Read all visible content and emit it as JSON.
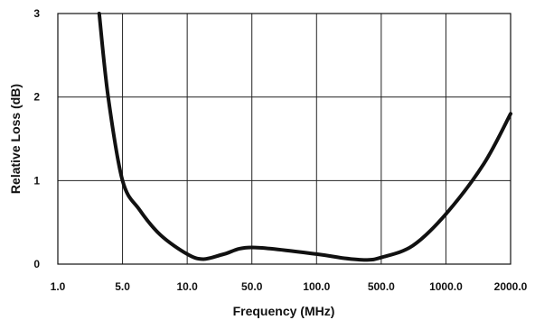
{
  "chart_data": {
    "type": "line",
    "xlabel": "Frequency (MHz)",
    "ylabel": "Relative Loss (dB)",
    "x_categories": [
      "1.0",
      "5.0",
      "10.0",
      "50.0",
      "100.0",
      "500.0",
      "1000.0",
      "2000.0"
    ],
    "y_ticks": [
      "0",
      "1",
      "2",
      "3"
    ],
    "ylim": [
      0,
      3
    ],
    "x_scale": "categorical, evenly spaced ticks",
    "grid": true,
    "legend": "none",
    "series": [
      {
        "color": "#111111",
        "points": [
          {
            "x": 2.8,
            "y": 3.0
          },
          {
            "x": 3.5,
            "y": 2.0
          },
          {
            "x": 5.0,
            "y": 1.0
          },
          {
            "x": 6.0,
            "y": 0.65
          },
          {
            "x": 7.5,
            "y": 0.35
          },
          {
            "x": 10.0,
            "y": 0.12
          },
          {
            "x": 15.0,
            "y": 0.06
          },
          {
            "x": 25.0,
            "y": 0.12
          },
          {
            "x": 50.0,
            "y": 0.2
          },
          {
            "x": 100.0,
            "y": 0.12
          },
          {
            "x": 200.0,
            "y": 0.07
          },
          {
            "x": 350.0,
            "y": 0.05
          },
          {
            "x": 500.0,
            "y": 0.08
          },
          {
            "x": 700.0,
            "y": 0.22
          },
          {
            "x": 1000.0,
            "y": 0.6
          },
          {
            "x": 1500.0,
            "y": 1.2
          },
          {
            "x": 2000.0,
            "y": 1.8
          }
        ]
      }
    ]
  }
}
